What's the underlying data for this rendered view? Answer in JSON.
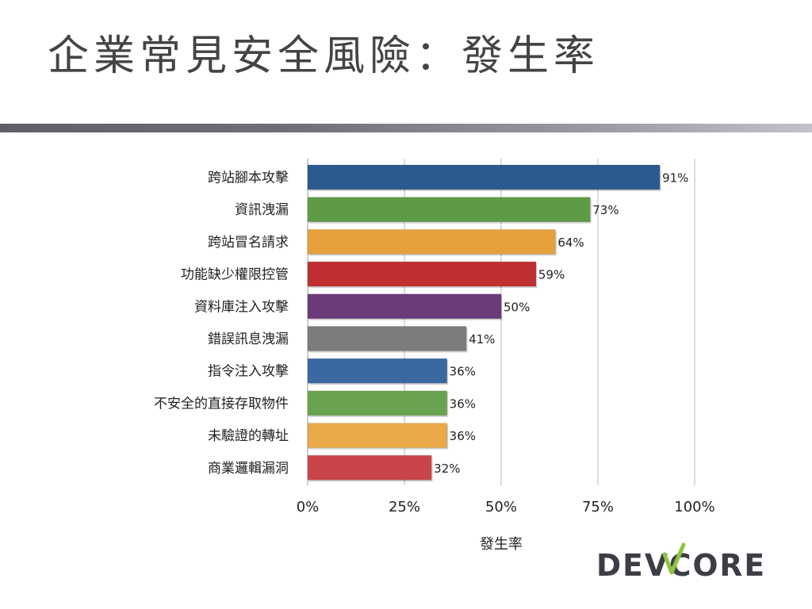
{
  "slide": {
    "title": "企業常見安全風險：發生率"
  },
  "logo": {
    "text": "DEVCORE",
    "color": "#3d3d45",
    "check_color": "#8cc63f"
  },
  "chart_data": {
    "type": "bar",
    "orientation": "horizontal",
    "categories": [
      "跨站腳本攻擊",
      "資訊洩漏",
      "跨站冒名請求",
      "功能缺少權限控管",
      "資料庫注入攻擊",
      "錯誤訊息洩漏",
      "指令注入攻擊",
      "不安全的直接存取物件",
      "未驗證的轉址",
      "商業邏輯漏洞"
    ],
    "values": [
      91,
      73,
      64,
      59,
      50,
      41,
      36,
      36,
      36,
      32
    ],
    "value_labels": [
      "91%",
      "73%",
      "64%",
      "59%",
      "50%",
      "41%",
      "36%",
      "36%",
      "36%",
      "32%"
    ],
    "colors": [
      "#2d5a8e",
      "#5f9a47",
      "#e6a03c",
      "#bf2f31",
      "#6b3a78",
      "#7b7d7c",
      "#3c68a2",
      "#6aa34f",
      "#eaaa4a",
      "#c8464a"
    ],
    "xlabel": "發生率",
    "xlim": [
      0,
      100
    ],
    "xticks": [
      0,
      25,
      50,
      75,
      100
    ],
    "xtick_labels": [
      "0%",
      "25%",
      "50%",
      "75%",
      "100%"
    ],
    "grid": true,
    "legend": "none"
  }
}
